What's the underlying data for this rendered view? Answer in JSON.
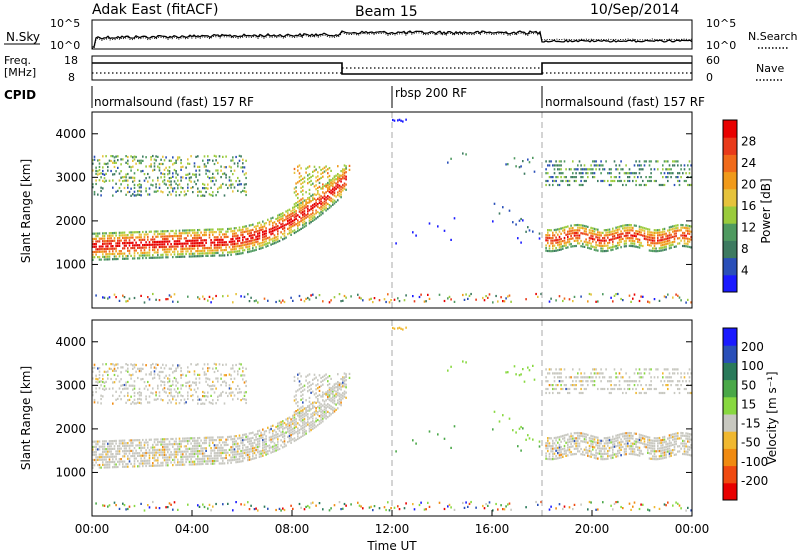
{
  "header": {
    "site": "Adak East (fitACF)",
    "beam": "Beam 15",
    "date": "10/Sep/2014"
  },
  "noise_panel": {
    "left_label": "N.Sky",
    "right_label": "N.Search",
    "left_ticks": [
      "10^5",
      "10^0"
    ],
    "right_ticks": [
      "10^5",
      "10^0"
    ]
  },
  "freq_panel": {
    "left_label_1": "Freq.",
    "left_label_2": "[MHz]",
    "right_label": "Nave",
    "left_ticks": [
      "18",
      "8"
    ],
    "right_ticks": [
      "60",
      "0"
    ]
  },
  "cpid": {
    "label": "CPID",
    "segments": [
      {
        "name": "normalsound (fast) 157 RF",
        "start_hour": 0,
        "end_hour": 12
      },
      {
        "name": "rbsp 200 RF",
        "start_hour": 12,
        "end_hour": 18
      },
      {
        "name": "normalsound (fast) 157 RF",
        "start_hour": 18,
        "end_hour": 24
      }
    ]
  },
  "colors": {
    "power_scale": [
      "#1a1aff",
      "#2a4fb8",
      "#3d7a60",
      "#4f9a60",
      "#9acb3c",
      "#e6c33c",
      "#f09a1a",
      "#f06a1a",
      "#e83a1a",
      "#e80000"
    ],
    "velocity_scale": [
      "#e80000",
      "#f04a10",
      "#f08a10",
      "#f0b830",
      "#c8c8c0",
      "#88d840",
      "#4aa848",
      "#2a7a5a",
      "#2a4fb8",
      "#1a1aff"
    ]
  },
  "chart_data": [
    {
      "type": "heatmap",
      "panel": "power",
      "ylabel": "Slant Range [km]",
      "ylim": [
        0,
        4500
      ],
      "yticks": [
        1000,
        2000,
        3000,
        4000
      ],
      "colorbar_label": "Power [dB]",
      "colorbar_ticks": [
        4,
        8,
        12,
        16,
        20,
        24,
        28
      ],
      "colorbar_range": [
        0,
        32
      ],
      "features": [
        {
          "band": "main lower band",
          "hours": [
            0,
            10
          ],
          "range_km": [
            1200,
            2100
          ],
          "power_db": [
            8,
            30
          ]
        },
        {
          "band": "rising band",
          "hours": [
            6,
            10.3
          ],
          "range_km": [
            2000,
            3300
          ],
          "power_db": [
            12,
            28
          ]
        },
        {
          "band": "upper band",
          "hours": [
            0,
            6
          ],
          "range_km": [
            2600,
            3500
          ],
          "power_db": [
            4,
            24
          ]
        },
        {
          "band": "post-switch lower band",
          "hours": [
            18,
            24
          ],
          "range_km": [
            1300,
            2000
          ],
          "power_db": [
            8,
            30
          ]
        },
        {
          "band": "post-switch upper band",
          "hours": [
            18,
            24
          ],
          "range_km": [
            2800,
            3400
          ],
          "power_db": [
            4,
            16
          ]
        }
      ]
    },
    {
      "type": "heatmap",
      "panel": "velocity",
      "ylabel": "Slant Range [km]",
      "ylim": [
        0,
        4500
      ],
      "yticks": [
        1000,
        2000,
        3000,
        4000
      ],
      "colorbar_label": "Velocity [m s⁻¹]",
      "colorbar_ticks": [
        200,
        100,
        50,
        15,
        -15,
        -50,
        -100,
        -200
      ],
      "colorbar_range": [
        -250,
        250
      ],
      "xlabel": "Time UT",
      "xticks": [
        "00:00",
        "04:00",
        "08:00",
        "12:00",
        "16:00",
        "20:00",
        "00:00"
      ],
      "xlim_hours": [
        0,
        24
      ]
    }
  ]
}
